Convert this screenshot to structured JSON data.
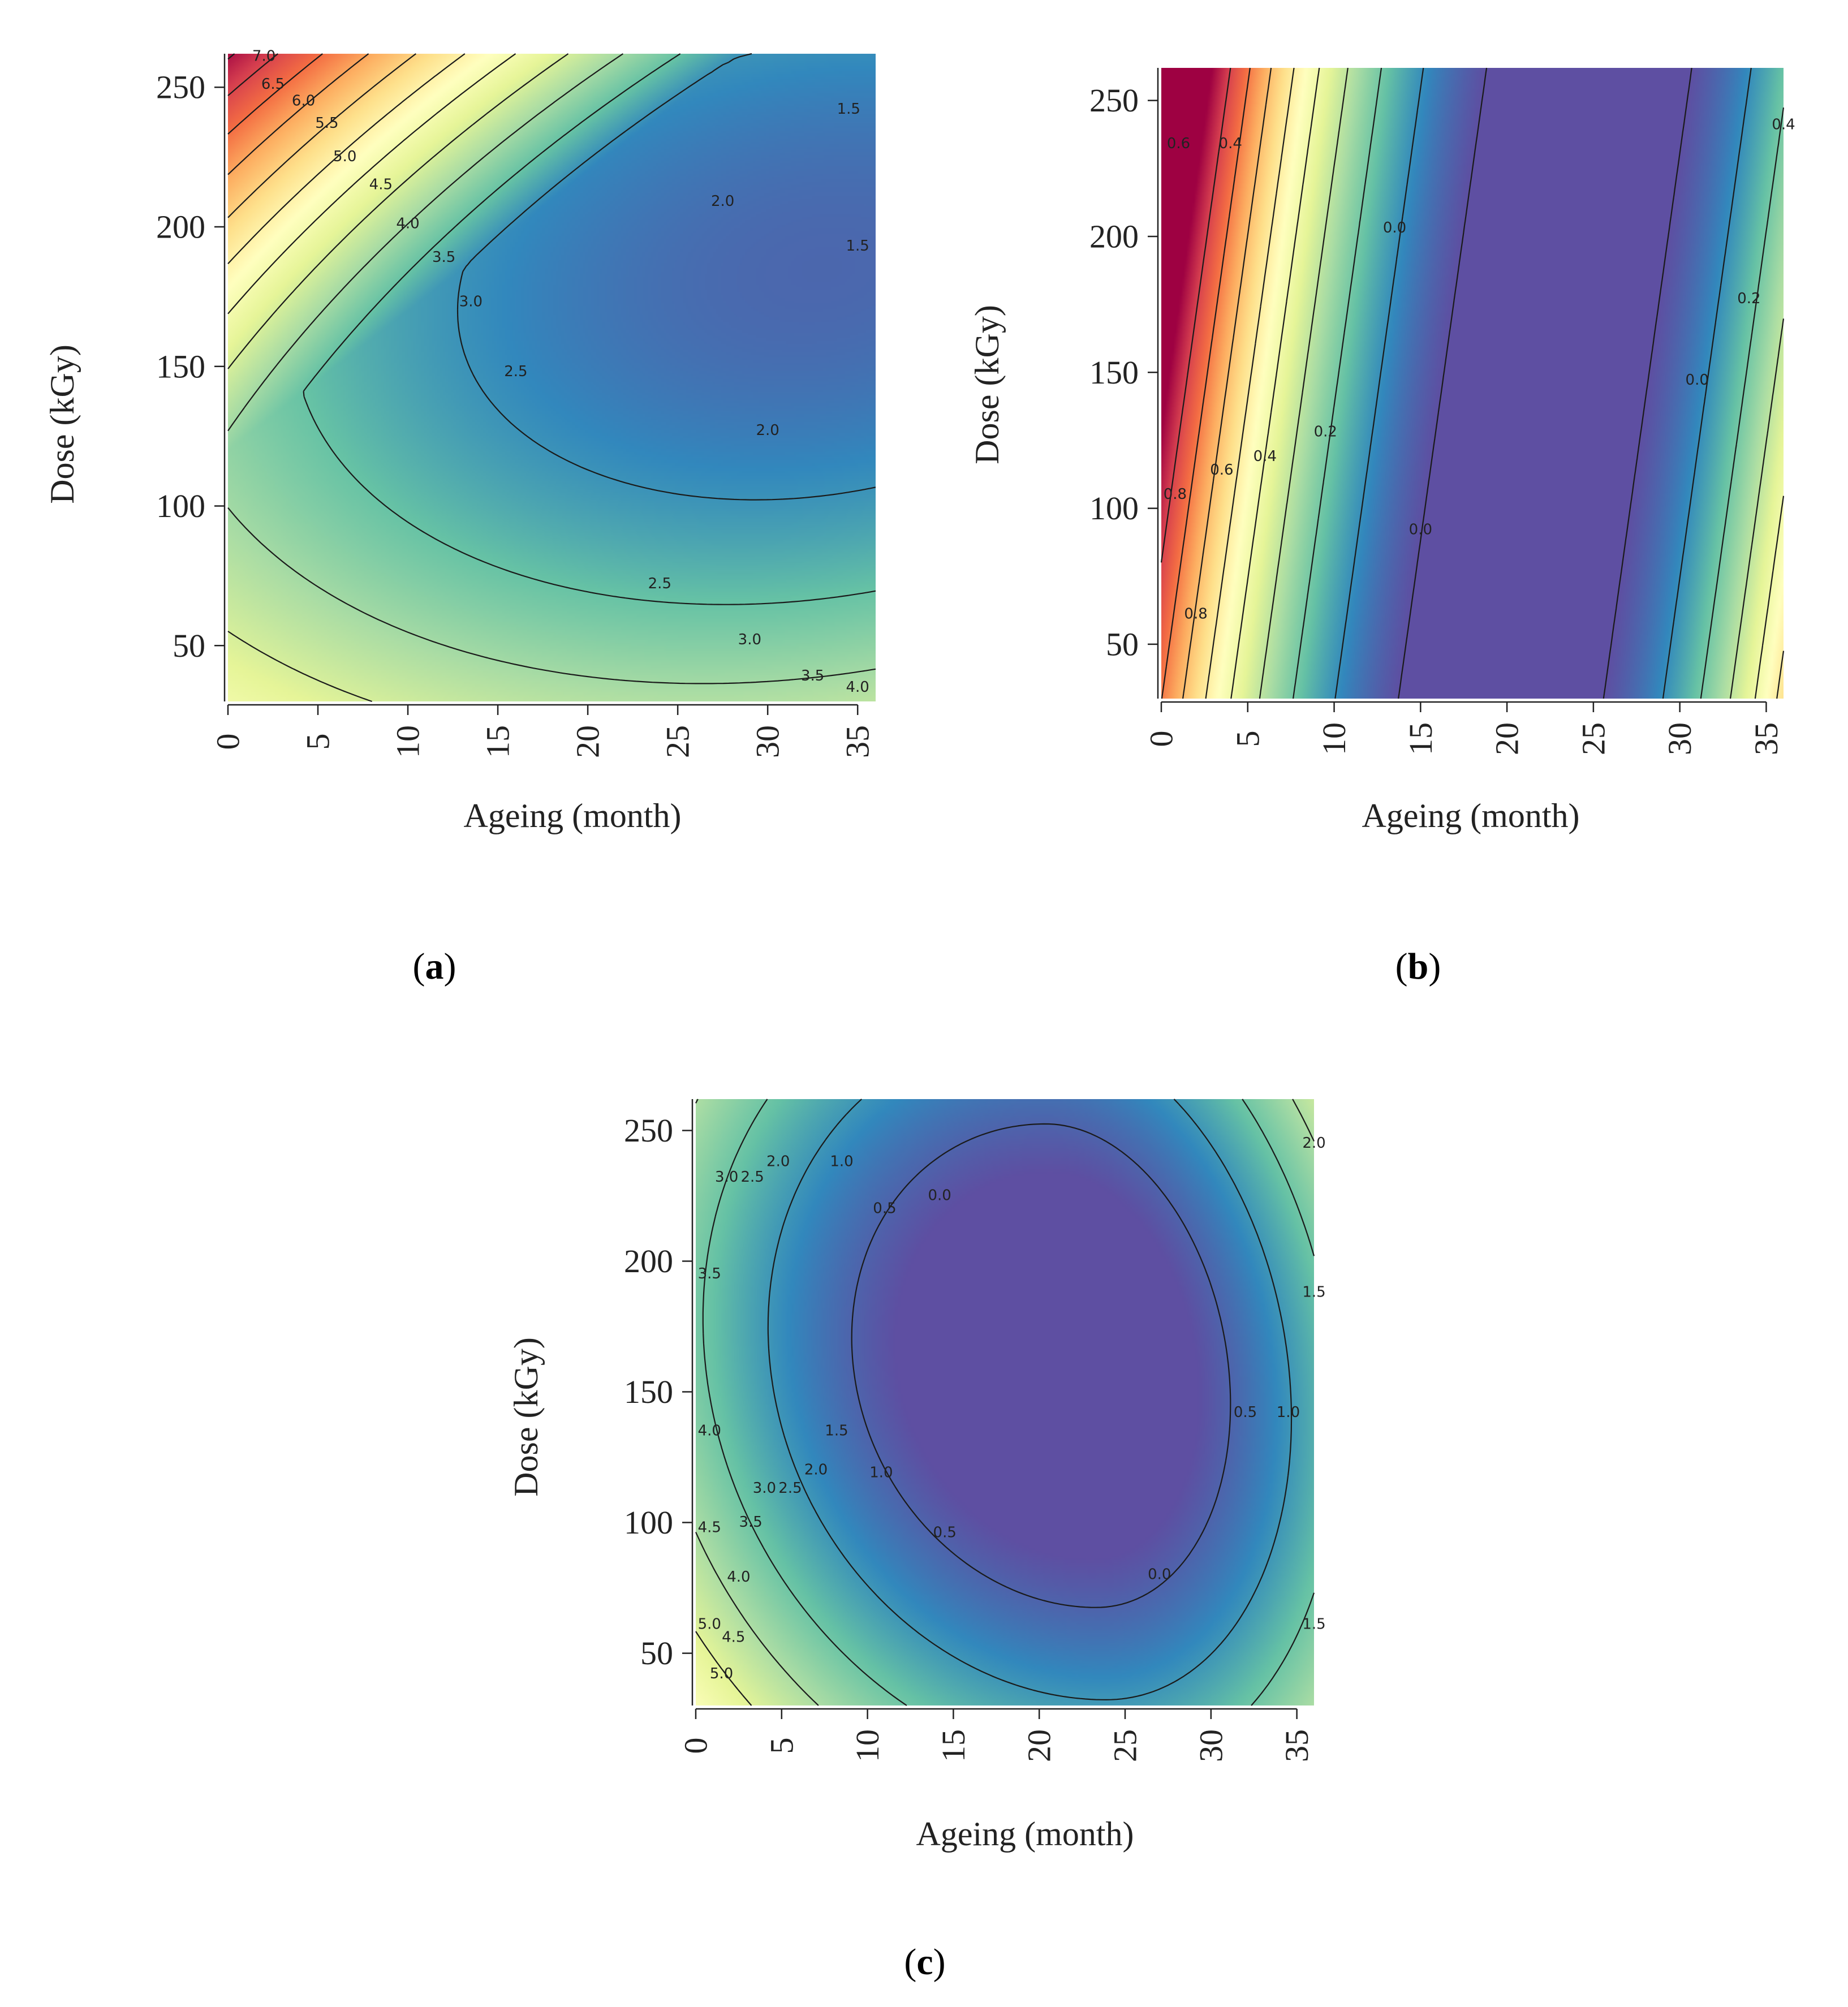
{
  "chart_data": [
    {
      "type": "heatmap",
      "panel_label": "a",
      "xlabel": "Ageing (month)",
      "ylabel": "Dose (kGy)",
      "xlim": [
        0,
        36
      ],
      "ylim": [
        30,
        262
      ],
      "x_ticks": [
        "0",
        "5",
        "10",
        "15",
        "20",
        "25",
        "30",
        "35"
      ],
      "x_tick_values": [
        0,
        5,
        10,
        15,
        20,
        25,
        30,
        35
      ],
      "y_ticks": [
        "50",
        "100",
        "150",
        "200",
        "250"
      ],
      "y_tick_values": [
        50,
        100,
        150,
        200,
        250
      ],
      "colorscale": "spectral",
      "contour_levels": [
        1.5,
        2.0,
        2.5,
        3.0,
        3.5,
        4.0,
        4.5,
        5.0,
        5.5,
        6.0,
        6.5,
        7.0
      ],
      "contour_labels": [
        {
          "text": "7.0",
          "x": 2.0,
          "y": 261
        },
        {
          "text": "6.5",
          "x": 2.5,
          "y": 251
        },
        {
          "text": "6.0",
          "x": 4.2,
          "y": 245
        },
        {
          "text": "5.5",
          "x": 5.5,
          "y": 237
        },
        {
          "text": "5.0",
          "x": 6.5,
          "y": 225
        },
        {
          "text": "4.5",
          "x": 8.5,
          "y": 215
        },
        {
          "text": "4.0",
          "x": 10.0,
          "y": 201
        },
        {
          "text": "3.5",
          "x": 12.0,
          "y": 189
        },
        {
          "text": "3.0",
          "x": 13.5,
          "y": 173
        },
        {
          "text": "2.5",
          "x": 16.0,
          "y": 148
        },
        {
          "text": "2.0",
          "x": 27.5,
          "y": 209
        },
        {
          "text": "1.5",
          "x": 34.5,
          "y": 242
        },
        {
          "text": "1.5",
          "x": 35.0,
          "y": 193
        },
        {
          "text": "2.0",
          "x": 30.0,
          "y": 127
        },
        {
          "text": "2.5",
          "x": 24.0,
          "y": 72
        },
        {
          "text": "3.0",
          "x": 29.0,
          "y": 52
        },
        {
          "text": "3.5",
          "x": 32.5,
          "y": 39
        },
        {
          "text": "4.0",
          "x": 35.0,
          "y": 35
        }
      ]
    },
    {
      "type": "heatmap",
      "panel_label": "b",
      "xlabel": "Ageing (month)",
      "ylabel": "Dose (kGy)",
      "xlim": [
        0,
        36
      ],
      "ylim": [
        30,
        262
      ],
      "x_ticks": [
        "0",
        "5",
        "10",
        "15",
        "20",
        "25",
        "30",
        "35"
      ],
      "x_tick_values": [
        0,
        5,
        10,
        15,
        20,
        25,
        30,
        35
      ],
      "y_ticks": [
        "50",
        "100",
        "150",
        "200",
        "250"
      ],
      "y_tick_values": [
        50,
        100,
        150,
        200,
        250
      ],
      "colorscale": "spectral",
      "contour_levels": [
        0.0,
        0.1,
        0.2,
        0.3,
        0.4,
        0.5,
        0.6,
        0.7,
        0.8
      ],
      "contour_labels": [
        {
          "text": "0.6",
          "x": 1.0,
          "y": 234
        },
        {
          "text": "0.4",
          "x": 4.0,
          "y": 234
        },
        {
          "text": "0.0",
          "x": 13.5,
          "y": 203
        },
        {
          "text": "0.4",
          "x": 36.0,
          "y": 241
        },
        {
          "text": "0.2",
          "x": 34.0,
          "y": 177
        },
        {
          "text": "0.0",
          "x": 31.0,
          "y": 147
        },
        {
          "text": "0.2",
          "x": 9.5,
          "y": 128
        },
        {
          "text": "0.4",
          "x": 6.0,
          "y": 119
        },
        {
          "text": "0.6",
          "x": 3.5,
          "y": 114
        },
        {
          "text": "0.8",
          "x": 0.8,
          "y": 105
        },
        {
          "text": "0.0",
          "x": 15.0,
          "y": 92
        },
        {
          "text": "0.8",
          "x": 2.0,
          "y": 61
        }
      ]
    },
    {
      "type": "heatmap",
      "panel_label": "c",
      "xlabel": "Ageing (month)",
      "ylabel": "Dose (kGy)",
      "xlim": [
        0,
        36
      ],
      "ylim": [
        30,
        262
      ],
      "x_ticks": [
        "0",
        "5",
        "10",
        "15",
        "20",
        "25",
        "30",
        "35"
      ],
      "x_tick_values": [
        0,
        5,
        10,
        15,
        20,
        25,
        30,
        35
      ],
      "y_ticks": [
        "50",
        "100",
        "150",
        "200",
        "250"
      ],
      "y_tick_values": [
        50,
        100,
        150,
        200,
        250
      ],
      "colorscale": "spectral",
      "contour_levels": [
        0.0,
        0.5,
        1.0,
        1.5,
        2.0,
        2.5,
        3.0,
        3.5,
        4.0,
        4.5,
        5.0
      ],
      "contour_labels": [
        {
          "text": "3.0",
          "x": 1.8,
          "y": 232
        },
        {
          "text": "2.5",
          "x": 3.3,
          "y": 232
        },
        {
          "text": "2.0",
          "x": 4.8,
          "y": 238
        },
        {
          "text": "1.0",
          "x": 8.5,
          "y": 238
        },
        {
          "text": "0.5",
          "x": 11.0,
          "y": 220
        },
        {
          "text": "0.0",
          "x": 14.2,
          "y": 225
        },
        {
          "text": "2.0",
          "x": 36.0,
          "y": 245
        },
        {
          "text": "3.5",
          "x": 0.8,
          "y": 195
        },
        {
          "text": "1.5",
          "x": 36.0,
          "y": 188
        },
        {
          "text": "4.0",
          "x": 0.8,
          "y": 135
        },
        {
          "text": "1.5",
          "x": 8.2,
          "y": 135
        },
        {
          "text": "1.0",
          "x": 10.8,
          "y": 119
        },
        {
          "text": "2.0",
          "x": 7.0,
          "y": 120
        },
        {
          "text": "3.0",
          "x": 4.0,
          "y": 113
        },
        {
          "text": "2.5",
          "x": 5.5,
          "y": 113
        },
        {
          "text": "3.5",
          "x": 3.2,
          "y": 100
        },
        {
          "text": "0.5",
          "x": 32.0,
          "y": 142
        },
        {
          "text": "1.0",
          "x": 34.5,
          "y": 142
        },
        {
          "text": "4.5",
          "x": 0.8,
          "y": 98
        },
        {
          "text": "0.5",
          "x": 14.5,
          "y": 96
        },
        {
          "text": "0.0",
          "x": 27.0,
          "y": 80
        },
        {
          "text": "4.0",
          "x": 2.5,
          "y": 79
        },
        {
          "text": "5.0",
          "x": 0.8,
          "y": 61
        },
        {
          "text": "4.5",
          "x": 2.2,
          "y": 56
        },
        {
          "text": "1.5",
          "x": 36.0,
          "y": 61
        },
        {
          "text": "5.0",
          "x": 1.5,
          "y": 42
        }
      ]
    }
  ]
}
